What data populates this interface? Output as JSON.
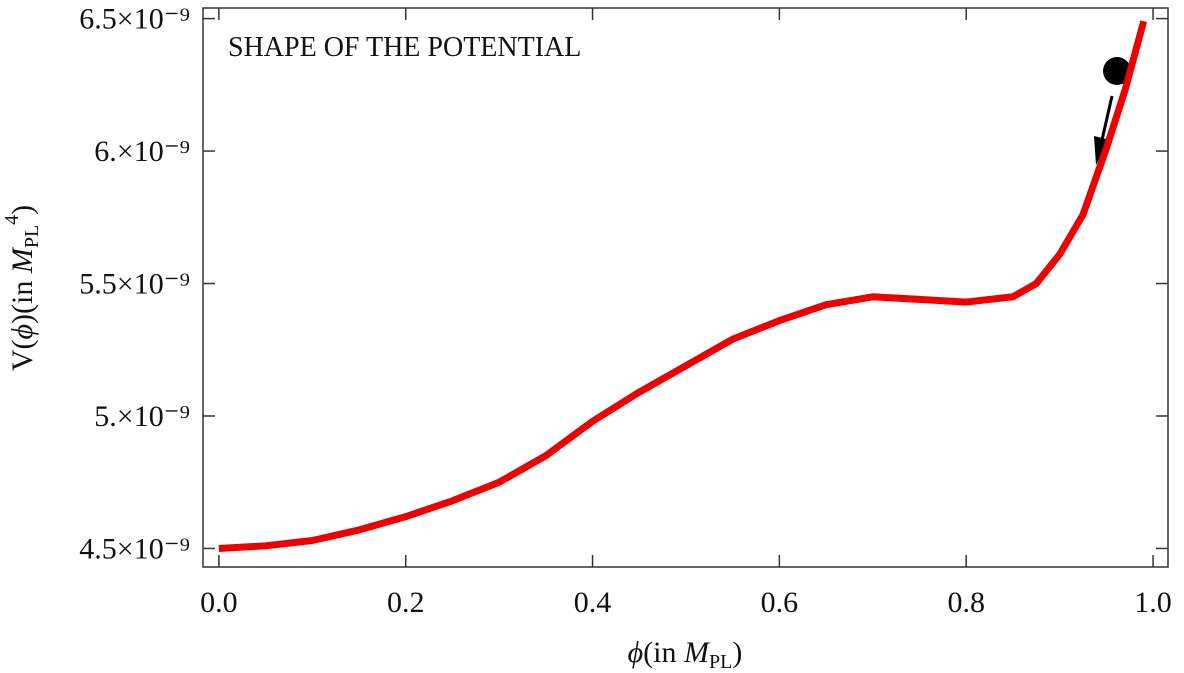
{
  "chart_data": {
    "type": "line",
    "annotation": "SHAPE OF THE POTENTIAL",
    "x_label": [
      "ϕ",
      "(in ",
      "M",
      "PL",
      ")"
    ],
    "y_label": [
      "V(",
      "ϕ",
      ")(in ",
      "M",
      "PL",
      "4",
      ")"
    ],
    "x": [
      0.0,
      0.05,
      0.1,
      0.15,
      0.2,
      0.25,
      0.3,
      0.35,
      0.4,
      0.45,
      0.5,
      0.55,
      0.6,
      0.65,
      0.7,
      0.75,
      0.8,
      0.85,
      0.875,
      0.9,
      0.925,
      0.95,
      0.97,
      0.99
    ],
    "series": [
      {
        "color": "#ee0000",
        "values": [
          4.5e-09,
          4.51e-09,
          4.53e-09,
          4.57e-09,
          4.62e-09,
          4.68e-09,
          4.75e-09,
          4.85e-09,
          4.98e-09,
          5.09e-09,
          5.19e-09,
          5.29e-09,
          5.36e-09,
          5.42e-09,
          5.45e-09,
          5.44e-09,
          5.43e-09,
          5.45e-09,
          5.5e-09,
          5.61e-09,
          5.76e-09,
          6.01e-09,
          6.23e-09,
          6.49e-09
        ]
      }
    ],
    "xlim": [
      -0.017,
      1.016
    ],
    "ylim": [
      4.43e-09,
      6.54e-09
    ],
    "xticks": [
      {
        "value": 0,
        "label": "0.0"
      },
      0.2,
      0.4,
      0.6,
      0.8,
      {
        "value": 1,
        "label": "1.0"
      }
    ],
    "yticks": [
      {
        "value": 4.5e-09,
        "label": "4.5×10⁻⁹"
      },
      {
        "value": 5e-09,
        "label": "5.×10⁻⁹"
      },
      {
        "value": 5.5e-09,
        "label": "5.5×10⁻⁹"
      },
      {
        "value": 6e-09,
        "label": "6.×10⁻⁹"
      },
      {
        "value": 6.5e-09,
        "label": "6.5×10⁻⁹"
      }
    ]
  }
}
